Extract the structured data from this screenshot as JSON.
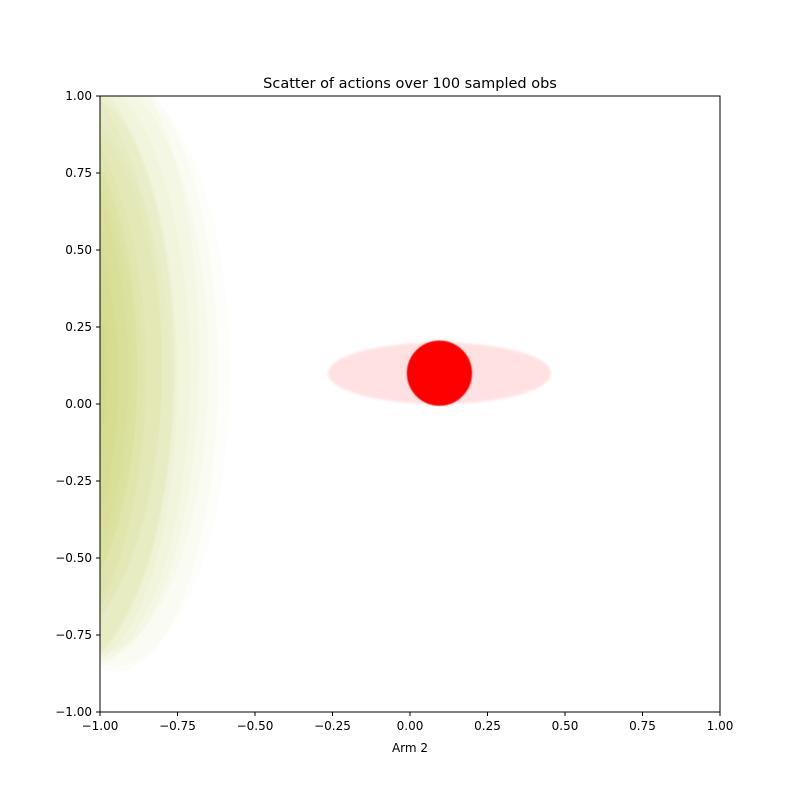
{
  "chart_data": {
    "type": "scatter",
    "title": "Scatter of actions over 100 sampled obs",
    "xlabel": "Arm 2",
    "ylabel": "",
    "xlim": [
      -1.0,
      1.0
    ],
    "ylim": [
      -1.0,
      1.0
    ],
    "x_ticks": [
      "−1.00",
      "−0.75",
      "−0.50",
      "−0.25",
      "0.00",
      "0.25",
      "0.50",
      "0.75",
      "1.00"
    ],
    "y_ticks": [
      "−1.00",
      "−0.75",
      "−0.50",
      "−0.25",
      "0.00",
      "0.25",
      "0.50",
      "0.75",
      "1.00"
    ],
    "grid": false,
    "legend": "none",
    "colors": {
      "action_fill": "#d4dc86",
      "mean_marker": "#ff0000",
      "mean_spread": "#ffdcdc"
    },
    "action_ellipses": [
      {
        "cx": -0.95,
        "cy": 0.1,
        "rx": 0.37,
        "ry": 0.95,
        "alpha": 0.05
      },
      {
        "cx": -0.95,
        "cy": 0.1,
        "rx": 0.33,
        "ry": 0.97,
        "alpha": 0.06
      },
      {
        "cx": -1.0,
        "cy": 0.12,
        "rx": 0.35,
        "ry": 0.93,
        "alpha": 0.06
      },
      {
        "cx": -1.0,
        "cy": 0.15,
        "rx": 0.32,
        "ry": 0.98,
        "alpha": 0.07
      },
      {
        "cx": -1.05,
        "cy": 0.1,
        "rx": 0.34,
        "ry": 0.96,
        "alpha": 0.07
      },
      {
        "cx": -1.05,
        "cy": 0.08,
        "rx": 0.3,
        "ry": 0.92,
        "alpha": 0.08
      },
      {
        "cx": -1.1,
        "cy": 0.1,
        "rx": 0.34,
        "ry": 0.95,
        "alpha": 0.08
      },
      {
        "cx": -1.12,
        "cy": 0.12,
        "rx": 0.36,
        "ry": 0.97,
        "alpha": 0.09
      },
      {
        "cx": -1.15,
        "cy": 0.05,
        "rx": 0.38,
        "ry": 0.94,
        "alpha": 0.09
      },
      {
        "cx": -1.18,
        "cy": 0.1,
        "rx": 0.38,
        "ry": 0.9,
        "alpha": 0.1
      },
      {
        "cx": -1.2,
        "cy": 0.15,
        "rx": 0.4,
        "ry": 0.97,
        "alpha": 0.1
      },
      {
        "cx": -1.22,
        "cy": 0.05,
        "rx": 0.36,
        "ry": 0.9,
        "alpha": 0.11
      },
      {
        "cx": -1.25,
        "cy": 0.1,
        "rx": 0.4,
        "ry": 0.94,
        "alpha": 0.12
      },
      {
        "cx": -1.28,
        "cy": 0.12,
        "rx": 0.4,
        "ry": 0.93,
        "alpha": 0.13
      },
      {
        "cx": -1.3,
        "cy": 0.08,
        "rx": 0.42,
        "ry": 0.9,
        "alpha": 0.14
      },
      {
        "cx": -1.32,
        "cy": 0.1,
        "rx": 0.42,
        "ry": 0.92,
        "alpha": 0.15
      },
      {
        "cx": -1.35,
        "cy": 0.1,
        "rx": 0.44,
        "ry": 0.95,
        "alpha": 0.16
      },
      {
        "cx": -1.38,
        "cy": 0.05,
        "rx": 0.44,
        "ry": 0.9,
        "alpha": 0.18
      },
      {
        "cx": -1.4,
        "cy": 0.1,
        "rx": 0.46,
        "ry": 0.93,
        "alpha": 0.2
      },
      {
        "cx": -1.42,
        "cy": 0.1,
        "rx": 0.45,
        "ry": 0.92,
        "alpha": 0.22
      },
      {
        "cx": -1.45,
        "cy": 0.08,
        "rx": 0.47,
        "ry": 0.94,
        "alpha": 0.25
      },
      {
        "cx": -1.5,
        "cy": 0.1,
        "rx": 0.52,
        "ry": 0.95,
        "alpha": 0.3
      },
      {
        "cx": -1.55,
        "cy": 0.1,
        "rx": 0.55,
        "ry": 0.96,
        "alpha": 0.35
      },
      {
        "cx": -1.6,
        "cy": 0.05,
        "rx": 0.6,
        "ry": 0.95,
        "alpha": 0.4
      },
      {
        "cx": -1.7,
        "cy": 0.1,
        "rx": 0.72,
        "ry": 0.97,
        "alpha": 0.45
      }
    ],
    "mean_point": {
      "x": 0.095,
      "y": 0.1,
      "r": 0.105
    },
    "mean_spread": {
      "cx": 0.095,
      "cy": 0.1,
      "rx": 0.36,
      "ry": 0.1
    }
  }
}
